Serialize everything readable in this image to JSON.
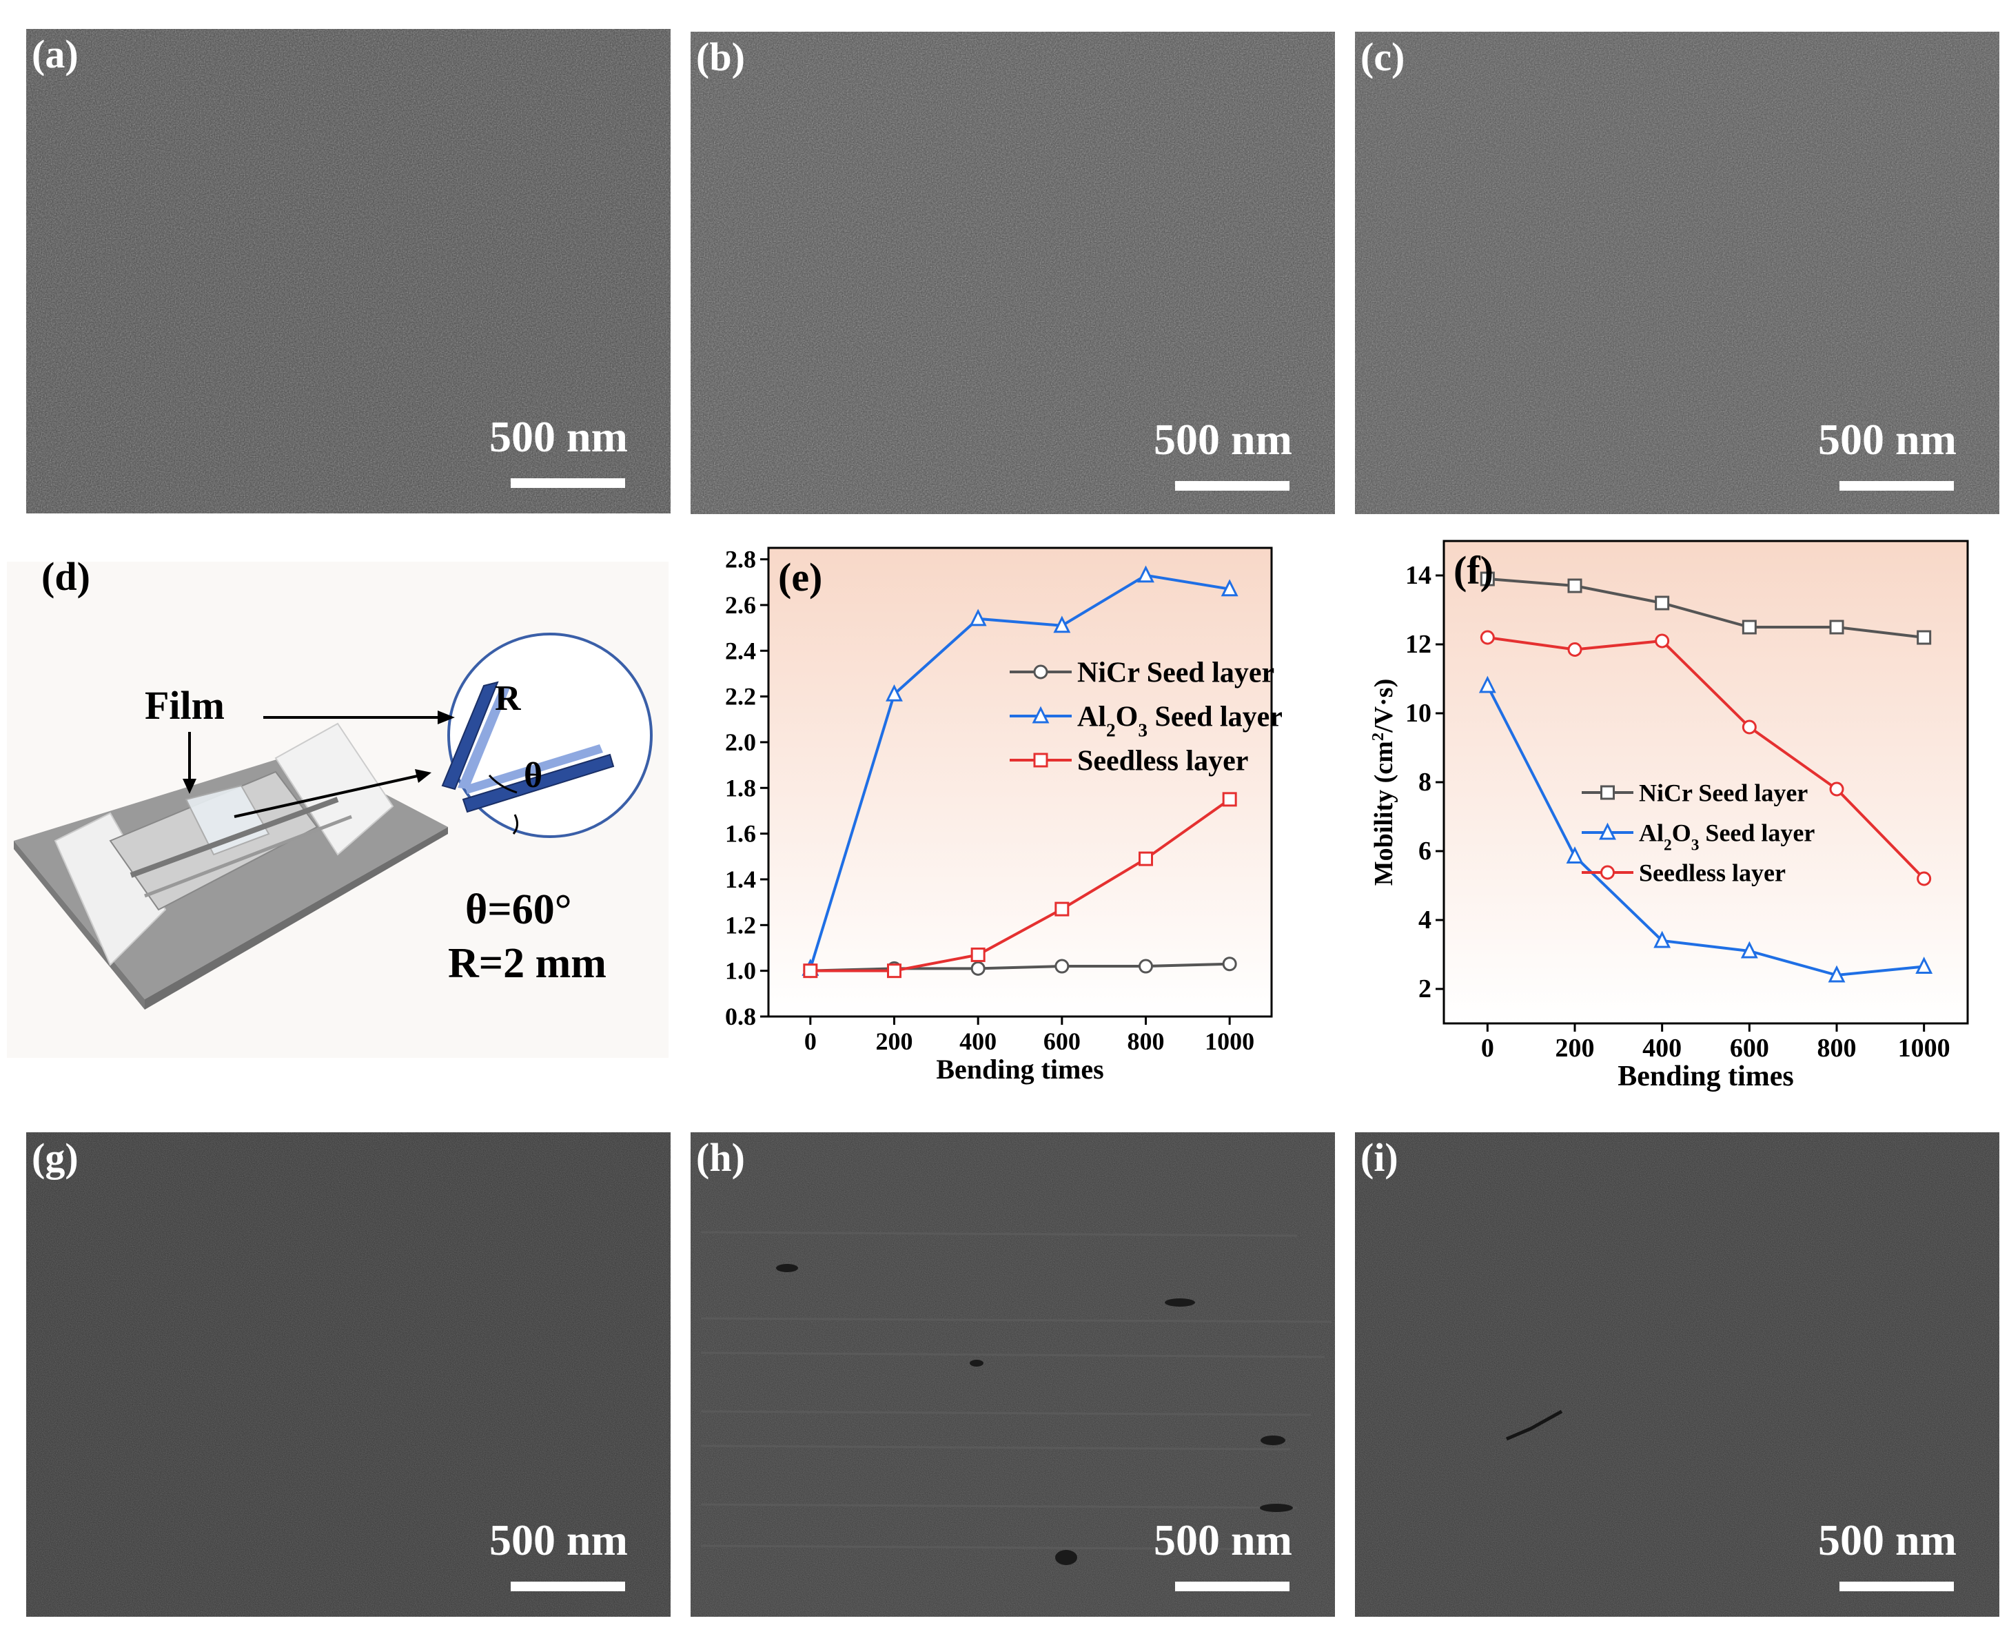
{
  "panels": {
    "a": {
      "label": "(a)",
      "scale": "500 nm"
    },
    "b": {
      "label": "(b)",
      "scale": "500 nm"
    },
    "c": {
      "label": "(c)",
      "scale": "500 nm"
    },
    "d": {
      "label": "(d)",
      "film_label": "Film",
      "radius_symbol": "R",
      "angle_symbol": "θ",
      "angle_text": "θ=60°",
      "radius_text": "R=2 mm"
    },
    "e": {
      "label": "(e)"
    },
    "f": {
      "label": "(f)"
    },
    "g": {
      "label": "(g)",
      "scale": "500 nm"
    },
    "h": {
      "label": "(h)",
      "scale": "500 nm"
    },
    "i": {
      "label": "(i)",
      "scale": "500 nm"
    }
  },
  "chart_data": [
    {
      "panel": "e",
      "type": "line",
      "x": [
        0,
        200,
        400,
        600,
        800,
        1000
      ],
      "xlabel": "Bending times",
      "ylabel": "",
      "xlim": [
        -100,
        1100
      ],
      "ylim": [
        0.8,
        2.85
      ],
      "yticks": [
        "0.8",
        "1.0",
        "1.2",
        "1.4",
        "1.6",
        "1.8",
        "2.0",
        "2.2",
        "2.4",
        "2.6",
        "2.8"
      ],
      "xticks": [
        "0",
        "200",
        "400",
        "600",
        "800",
        "1000"
      ],
      "legend_position": "right",
      "series": [
        {
          "name": "NiCr Seed layer",
          "marker": "circle",
          "color": "#555555",
          "values": [
            1.0,
            1.01,
            1.01,
            1.02,
            1.02,
            1.03
          ]
        },
        {
          "name": "Al2O3 Seed layer",
          "marker": "triangle",
          "color": "#1f6fe5",
          "values": [
            1.01,
            2.21,
            2.54,
            2.51,
            2.73,
            2.67
          ]
        },
        {
          "name": "Seedless layer",
          "marker": "square",
          "color": "#e53030",
          "values": [
            1.0,
            1.0,
            1.07,
            1.27,
            1.49,
            1.75
          ]
        }
      ]
    },
    {
      "panel": "f",
      "type": "line",
      "x": [
        0,
        200,
        400,
        600,
        800,
        1000
      ],
      "xlabel": "Bending times",
      "ylabel": "Mobility (cm²/V·s)",
      "xlim": [
        -100,
        1100
      ],
      "ylim": [
        1,
        15
      ],
      "yticks": [
        "2",
        "4",
        "6",
        "8",
        "10",
        "12",
        "14"
      ],
      "xticks": [
        "0",
        "200",
        "400",
        "600",
        "800",
        "1000"
      ],
      "legend_position": "center-left",
      "series": [
        {
          "name": "NiCr Seed layer",
          "marker": "square",
          "color": "#555555",
          "values": [
            13.9,
            13.7,
            13.2,
            12.5,
            12.5,
            12.2
          ]
        },
        {
          "name": "Al2O3 Seed layer",
          "marker": "triangle",
          "color": "#1f6fe5",
          "values": [
            10.8,
            5.85,
            3.4,
            3.1,
            2.4,
            2.65
          ]
        },
        {
          "name": "Seedless layer",
          "marker": "circle",
          "color": "#e53030",
          "values": [
            12.2,
            11.85,
            12.1,
            9.6,
            7.8,
            5.2
          ]
        }
      ]
    }
  ]
}
